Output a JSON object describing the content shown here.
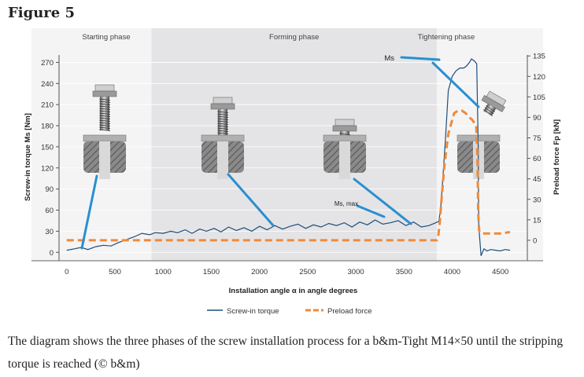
{
  "figure_label": "Figure 5",
  "caption": "The diagram shows the three phases of the screw installation process for a b&m-Tight M14×50 until the stripping torque is reached (© b&m)",
  "colors": {
    "torque": "#1f4e79",
    "preload": "#f08a3a",
    "callout": "#2a8fd0",
    "forming_bg": "#e4e4e6"
  },
  "chart_data": {
    "type": "line",
    "xlabel": "Installation angle α in angle degrees",
    "ylabel_left": "Screw-in torque Ms [Nm]",
    "ylabel_right": "Preload force Fp [kN]",
    "xlim": [
      -80,
      4780
    ],
    "ylim_left": [
      -12,
      285
    ],
    "ylim_right": [
      -15,
      138
    ],
    "x_ticks": [
      "0",
      "500",
      "1000",
      "1500",
      "2000",
      "2500",
      "3000",
      "3500",
      "4000",
      "4500"
    ],
    "x_tick_values": [
      0,
      500,
      1000,
      1500,
      2000,
      2500,
      3000,
      3500,
      4000,
      4500
    ],
    "y_left_ticks": [
      "0",
      "30",
      "60",
      "90",
      "120",
      "150",
      "180",
      "210",
      "240",
      "270"
    ],
    "y_left_tick_values": [
      0,
      30,
      60,
      90,
      120,
      150,
      180,
      210,
      240,
      270
    ],
    "y_right_ticks": [
      "0",
      "15",
      "30",
      "45",
      "60",
      "75",
      "90",
      "105",
      "120",
      "135"
    ],
    "y_right_tick_values": [
      0,
      15,
      30,
      45,
      60,
      75,
      90,
      105,
      120,
      135
    ],
    "phases": [
      {
        "label": "Starting phase",
        "x_from": -80,
        "x_to": 880
      },
      {
        "label": "Forming phase",
        "x_from": 880,
        "x_to": 3840
      },
      {
        "label": "Tightening phase",
        "x_from": 3840,
        "x_to": 4780
      }
    ],
    "annotations": [
      {
        "label": "Ms",
        "x": 4200,
        "y": 275
      },
      {
        "label": "Ms, max",
        "x": 3850,
        "y": 42
      }
    ],
    "legend": [
      "Screw-in torque",
      "Preload force"
    ],
    "legend_position": "bottom-center",
    "series": [
      {
        "name": "Screw-in torque",
        "axis": "left",
        "style": "solid",
        "x": [
          0,
          80,
          150,
          220,
          300,
          380,
          460,
          540,
          620,
          700,
          780,
          860,
          920,
          1000,
          1080,
          1150,
          1230,
          1300,
          1380,
          1450,
          1530,
          1600,
          1680,
          1760,
          1840,
          1920,
          2000,
          2080,
          2160,
          2240,
          2320,
          2400,
          2480,
          2560,
          2640,
          2720,
          2800,
          2880,
          2960,
          3040,
          3120,
          3200,
          3280,
          3360,
          3440,
          3520,
          3600,
          3680,
          3760,
          3830,
          3860,
          3880,
          3900,
          3930,
          3960,
          4000,
          4040,
          4080,
          4120,
          4150,
          4180,
          4200,
          4230,
          4255,
          4270,
          4275,
          4280,
          4300,
          4330,
          4360,
          4400,
          4450,
          4500,
          4550,
          4600
        ],
        "y": [
          3,
          5,
          7,
          4,
          8,
          10,
          9,
          14,
          18,
          22,
          27,
          25,
          28,
          27,
          30,
          28,
          32,
          27,
          33,
          30,
          34,
          29,
          36,
          31,
          35,
          30,
          37,
          32,
          38,
          33,
          37,
          40,
          34,
          39,
          36,
          41,
          38,
          42,
          36,
          43,
          39,
          46,
          40,
          42,
          45,
          38,
          43,
          36,
          38,
          42,
          44,
          60,
          100,
          160,
          230,
          250,
          258,
          262,
          262,
          265,
          270,
          275,
          272,
          268,
          150,
          40,
          30,
          -5,
          5,
          2,
          4,
          3,
          2,
          4,
          3
        ]
      },
      {
        "name": "Preload force",
        "axis": "right",
        "style": "dashed",
        "x": [
          0,
          500,
          1000,
          1500,
          2000,
          2500,
          3000,
          3500,
          3840,
          3855,
          3870,
          3890,
          3920,
          3960,
          4000,
          4020,
          4060,
          4100,
          4140,
          4180,
          4210,
          4230,
          4250,
          4262,
          4270,
          4280,
          4300,
          4400,
          4500,
          4600
        ],
        "y": [
          0,
          0,
          0,
          0,
          0,
          0,
          0,
          0,
          0,
          3,
          12,
          30,
          55,
          78,
          88,
          93,
          95,
          95,
          93,
          90,
          88,
          86,
          84,
          60,
          20,
          7,
          5,
          5,
          5,
          6
        ]
      }
    ]
  }
}
